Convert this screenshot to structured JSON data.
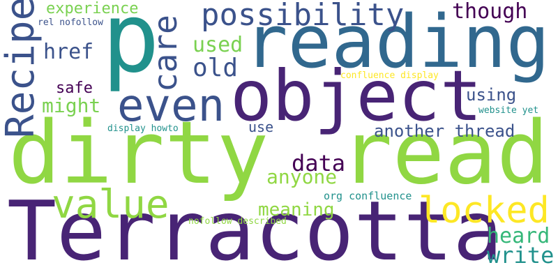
{
  "colors": {
    "background": "#ffffff",
    "dark_purple": "#482475",
    "dark_purple_2": "#440154",
    "indigo": "#3b528b",
    "blue": "#31688e",
    "teal": "#21918c",
    "green": "#35b779",
    "lime": "#90d743",
    "yellow": "#fde725",
    "light_green": "#7ad151"
  },
  "words": {
    "p": "p",
    "reading": "reading",
    "object": "object",
    "dirty": "dirty",
    "read": "read",
    "terracotta": "Terracotta",
    "even": "even",
    "value": "value",
    "locked": "locked",
    "recipe": "Recipe",
    "care": "care",
    "possibility": "possibility",
    "experience": "experience",
    "though": "though",
    "href": "href",
    "used": "used",
    "old": "old",
    "might": "might",
    "safe": "safe",
    "using": "using",
    "another_thread": "another thread",
    "data": "data",
    "anyone": "anyone",
    "meaning": "meaning",
    "heard": "heard",
    "write": "write",
    "use": "use",
    "rel_nofollow": "rel nofollow",
    "confluence_display": "confluence display",
    "website_yet": "website yet",
    "display_howto": "display howto",
    "org_confluence": "org confluence",
    "nofollow_described": "nofollow described"
  }
}
